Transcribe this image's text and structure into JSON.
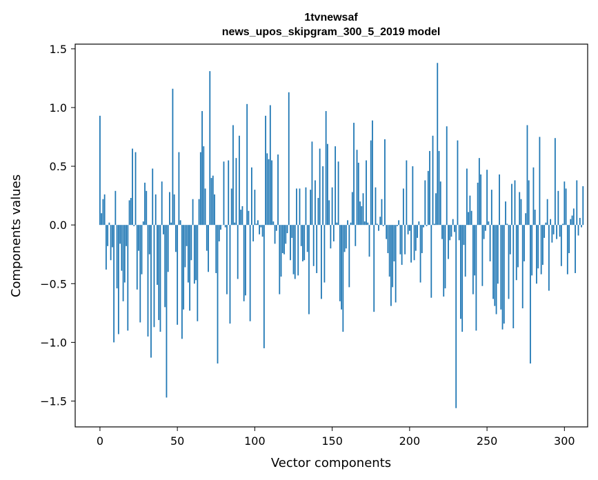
{
  "chart_data": {
    "type": "bar",
    "title": "1tvnewsaf",
    "subtitle": "news_upos_skipgram_300_5_2019 model",
    "xlabel": "Vector components",
    "ylabel": "Components values",
    "xlim": [
      -16,
      315
    ],
    "ylim": [
      -1.72,
      1.54
    ],
    "xticks": [
      0,
      50,
      100,
      150,
      200,
      250,
      300
    ],
    "xtick_labels": [
      "0",
      "50",
      "100",
      "150",
      "200",
      "250",
      "300"
    ],
    "yticks": [
      -1.5,
      -1.0,
      -0.5,
      0.0,
      0.5,
      1.0,
      1.5
    ],
    "ytick_labels": [
      "−1.5",
      "−1.0",
      "−0.5",
      "0.0",
      "0.5",
      "1.0",
      "1.5"
    ],
    "bar_color": "#1f77b4",
    "grid": false,
    "values": [
      0.93,
      0.1,
      0.22,
      0.26,
      -0.38,
      -0.18,
      0.02,
      -0.3,
      -0.19,
      -1.0,
      0.29,
      -0.54,
      -0.93,
      -0.16,
      -0.39,
      -0.65,
      -0.49,
      -0.18,
      -0.9,
      0.21,
      0.23,
      0.65,
      -0.01,
      0.62,
      -0.55,
      -0.22,
      -0.83,
      -0.42,
      0.03,
      0.36,
      0.29,
      -0.95,
      -0.25,
      -1.13,
      0.48,
      -0.87,
      0.26,
      -0.51,
      -0.81,
      -0.91,
      0.37,
      -0.08,
      -0.7,
      -1.47,
      -0.4,
      0.28,
      0.02,
      1.16,
      0.26,
      -0.23,
      -0.85,
      0.62,
      0.04,
      -0.97,
      -0.72,
      -0.36,
      -0.18,
      -0.49,
      -0.73,
      -0.3,
      0.22,
      -0.5,
      -0.47,
      -0.82,
      0.22,
      0.62,
      0.97,
      0.67,
      0.31,
      -0.22,
      -0.4,
      1.31,
      0.4,
      0.42,
      0.26,
      -0.41,
      -1.18,
      -0.14,
      -0.04,
      0.0,
      0.54,
      -0.02,
      -0.59,
      0.55,
      -0.84,
      0.31,
      0.85,
      0.02,
      0.57,
      -0.46,
      0.76,
      0.13,
      0.16,
      -0.65,
      -0.6,
      1.03,
      0.12,
      -0.82,
      0.49,
      -0.14,
      0.3,
      0.01,
      0.04,
      -0.08,
      -0.02,
      -0.1,
      -1.05,
      0.93,
      0.61,
      0.56,
      1.02,
      0.55,
      0.03,
      -0.16,
      -0.05,
      0.6,
      -0.59,
      -0.44,
      -0.24,
      -0.25,
      -0.16,
      -0.07,
      1.13,
      -0.3,
      -0.11,
      -0.42,
      -0.46,
      0.31,
      -0.43,
      0.31,
      -0.18,
      -0.31,
      -0.3,
      0.32,
      -0.23,
      -0.76,
      0.3,
      0.71,
      -0.35,
      0.38,
      -0.41,
      0.23,
      0.65,
      -0.63,
      0.5,
      -0.49,
      0.97,
      0.69,
      0.21,
      -0.2,
      0.32,
      -0.14,
      0.67,
      0.02,
      0.54,
      -0.65,
      -0.72,
      -0.91,
      -0.23,
      -0.2,
      0.04,
      -0.53,
      0.02,
      0.28,
      0.87,
      -0.18,
      0.64,
      0.53,
      0.2,
      0.16,
      0.27,
      0.03,
      0.55,
      0.02,
      -0.27,
      0.72,
      0.89,
      -0.74,
      0.32,
      0.01,
      -0.05,
      0.07,
      0.22,
      -0.01,
      0.73,
      -0.12,
      -0.24,
      -0.44,
      -0.69,
      -0.53,
      -0.31,
      -0.66,
      -0.01,
      0.04,
      -0.25,
      -0.34,
      0.31,
      -0.25,
      0.55,
      -0.08,
      -0.05,
      -0.32,
      0.5,
      -0.3,
      -0.22,
      -0.11,
      0.03,
      -0.49,
      -0.24,
      -0.02,
      0.38,
      -0.01,
      0.46,
      0.63,
      -0.62,
      0.76,
      0.01,
      0.27,
      1.38,
      0.63,
      0.37,
      -0.12,
      -0.61,
      -0.54,
      0.84,
      -0.29,
      -0.13,
      -0.1,
      0.05,
      -0.06,
      -1.56,
      0.72,
      -0.13,
      -0.8,
      -0.91,
      -0.17,
      -0.44,
      0.48,
      0.11,
      0.25,
      0.12,
      -0.59,
      -0.43,
      -0.9,
      0.36,
      0.57,
      0.43,
      -0.52,
      -0.12,
      -0.05,
      0.47,
      0.03,
      -0.31,
      0.3,
      -0.63,
      -0.69,
      -0.76,
      -0.5,
      0.43,
      -0.72,
      -0.89,
      -0.84,
      0.2,
      0.01,
      -0.63,
      -0.25,
      0.35,
      -0.88,
      0.38,
      -0.47,
      -0.36,
      0.28,
      0.22,
      -0.71,
      -0.31,
      0.1,
      0.85,
      0.38,
      -1.18,
      -0.43,
      0.49,
      0.13,
      -0.5,
      -0.37,
      0.75,
      -0.42,
      -0.34,
      -0.11,
      0.02,
      0.22,
      -0.56,
      0.05,
      -0.15,
      -0.08,
      0.74,
      -0.12,
      0.29,
      -0.1,
      -0.35,
      0.01,
      0.37,
      0.31,
      -0.42,
      -0.24,
      0.05,
      0.08,
      0.14,
      -0.41,
      0.38,
      -0.09,
      0.06,
      -0.02,
      0.33
    ]
  }
}
